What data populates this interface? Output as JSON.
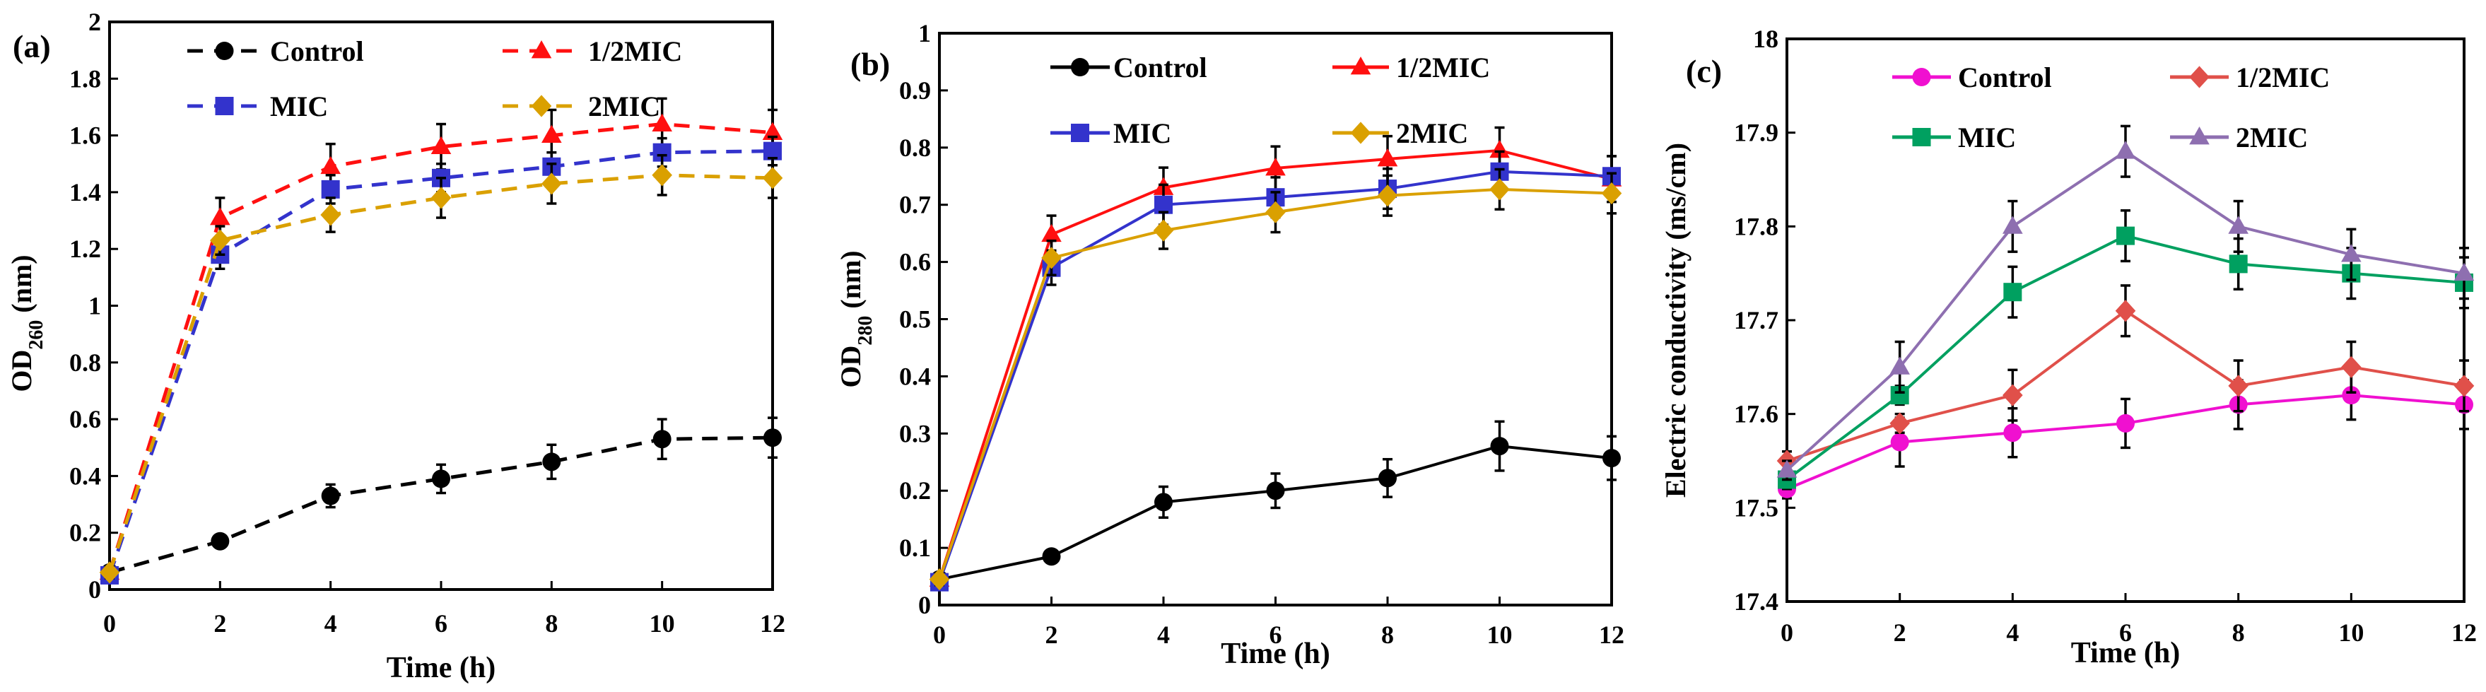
{
  "chart_data": [
    {
      "type": "line",
      "panel_label": "(a)",
      "xlabel": "Time (h)",
      "ylabel_main": "OD",
      "ylabel_sub": "260",
      "ylabel_unit": " (nm)",
      "x": [
        0,
        2,
        4,
        6,
        8,
        10,
        12
      ],
      "xlim": [
        0,
        12
      ],
      "ylim": [
        0,
        2
      ],
      "xticks": [
        "0",
        "2",
        "4",
        "6",
        "8",
        "10",
        "12"
      ],
      "yticks": [
        "0",
        "0.2",
        "0.4",
        "0.6",
        "0.8",
        "1",
        "1.2",
        "1.4",
        "1.6",
        "1.8",
        "2"
      ],
      "line_style": "dashed",
      "legend_placement": "top",
      "series": [
        {
          "name": "Control",
          "color": "#000000",
          "marker": "circle",
          "values": [
            0.06,
            0.17,
            0.33,
            0.39,
            0.45,
            0.53,
            0.535
          ],
          "errors": [
            0.02,
            0.02,
            0.04,
            0.05,
            0.06,
            0.07,
            0.07
          ]
        },
        {
          "name": "1/2MIC",
          "color": "#ff1010",
          "marker": "triangle",
          "values": [
            0.06,
            1.31,
            1.49,
            1.56,
            1.6,
            1.64,
            1.61
          ],
          "errors": [
            0.02,
            0.07,
            0.08,
            0.08,
            0.09,
            0.09,
            0.08
          ]
        },
        {
          "name": "MIC",
          "color": "#3333cc",
          "marker": "square",
          "values": [
            0.05,
            1.18,
            1.41,
            1.45,
            1.49,
            1.54,
            1.545
          ],
          "errors": [
            0.02,
            0.05,
            0.05,
            0.05,
            0.05,
            0.05,
            0.05
          ]
        },
        {
          "name": "2MIC",
          "color": "#daa000",
          "marker": "diamond",
          "values": [
            0.06,
            1.23,
            1.32,
            1.38,
            1.43,
            1.46,
            1.45
          ],
          "errors": [
            0.02,
            0.05,
            0.06,
            0.07,
            0.07,
            0.07,
            0.07
          ]
        }
      ]
    },
    {
      "type": "line",
      "panel_label": "(b)",
      "xlabel": "Time (h)",
      "ylabel_main": "OD",
      "ylabel_sub": "280",
      "ylabel_unit": " (nm)",
      "x": [
        0,
        2,
        4,
        6,
        8,
        10,
        12
      ],
      "xlim": [
        0,
        12
      ],
      "ylim": [
        0,
        1
      ],
      "xticks": [
        "0",
        "2",
        "4",
        "6",
        "8",
        "10",
        "12"
      ],
      "yticks": [
        "0",
        "0.1",
        "0.2",
        "0.3",
        "0.4",
        "0.5",
        "0.6",
        "0.7",
        "0.8",
        "0.9",
        "1"
      ],
      "line_style": "solid",
      "legend_placement": "top",
      "series": [
        {
          "name": "Control",
          "color": "#000000",
          "marker": "circle",
          "values": [
            0.045,
            0.085,
            0.18,
            0.2,
            0.222,
            0.278,
            0.257
          ],
          "errors": [
            0.01,
            0.01,
            0.027,
            0.03,
            0.033,
            0.043,
            0.038
          ]
        },
        {
          "name": "1/2MIC",
          "color": "#ff1010",
          "marker": "triangle",
          "values": [
            0.045,
            0.648,
            0.73,
            0.764,
            0.78,
            0.795,
            0.745
          ],
          "errors": [
            0.01,
            0.033,
            0.035,
            0.038,
            0.04,
            0.04,
            0.04
          ]
        },
        {
          "name": "MIC",
          "color": "#3333cc",
          "marker": "square",
          "values": [
            0.04,
            0.59,
            0.7,
            0.713,
            0.728,
            0.758,
            0.75
          ],
          "errors": [
            0.01,
            0.03,
            0.035,
            0.035,
            0.035,
            0.035,
            0.035
          ]
        },
        {
          "name": "2MIC",
          "color": "#daa000",
          "marker": "diamond",
          "values": [
            0.045,
            0.607,
            0.655,
            0.687,
            0.716,
            0.727,
            0.72
          ],
          "errors": [
            0.01,
            0.03,
            0.032,
            0.035,
            0.035,
            0.035,
            0.035
          ]
        }
      ]
    },
    {
      "type": "line",
      "panel_label": "(c)",
      "xlabel": "Time (h)",
      "ylabel_main": "Electric conductivity (ms/cm)",
      "ylabel_sub": "",
      "ylabel_unit": "",
      "x": [
        0,
        2,
        4,
        6,
        8,
        10,
        12
      ],
      "xlim": [
        0,
        12
      ],
      "ylim": [
        17.4,
        18
      ],
      "xticks": [
        "0",
        "2",
        "4",
        "6",
        "8",
        "10",
        "12"
      ],
      "yticks": [
        "17.4",
        "17.5",
        "17.6",
        "17.7",
        "17.8",
        "17.9",
        "18"
      ],
      "line_style": "solid",
      "legend_placement": "top",
      "series": [
        {
          "name": "Control",
          "color": "#f010d0",
          "marker": "circle",
          "values": [
            17.52,
            17.57,
            17.58,
            17.59,
            17.61,
            17.62,
            17.61
          ],
          "errors": [
            0.01,
            0.026,
            0.026,
            0.026,
            0.026,
            0.026,
            0.026
          ]
        },
        {
          "name": "1/2MIC",
          "color": "#e0504a",
          "marker": "diamond",
          "values": [
            17.55,
            17.59,
            17.62,
            17.71,
            17.63,
            17.65,
            17.63
          ],
          "errors": [
            0.01,
            0.01,
            0.027,
            0.027,
            0.027,
            0.027,
            0.027
          ]
        },
        {
          "name": "MIC",
          "color": "#00a060",
          "marker": "square",
          "values": [
            17.53,
            17.62,
            17.73,
            17.79,
            17.76,
            17.75,
            17.74
          ],
          "errors": [
            0.01,
            0.01,
            0.027,
            0.027,
            0.027,
            0.027,
            0.027
          ]
        },
        {
          "name": "2MIC",
          "color": "#8e6fb0",
          "marker": "triangle",
          "values": [
            17.54,
            17.65,
            17.8,
            17.88,
            17.8,
            17.77,
            17.75
          ],
          "errors": [
            0.01,
            0.027,
            0.027,
            0.027,
            0.027,
            0.027,
            0.027
          ]
        }
      ]
    }
  ]
}
